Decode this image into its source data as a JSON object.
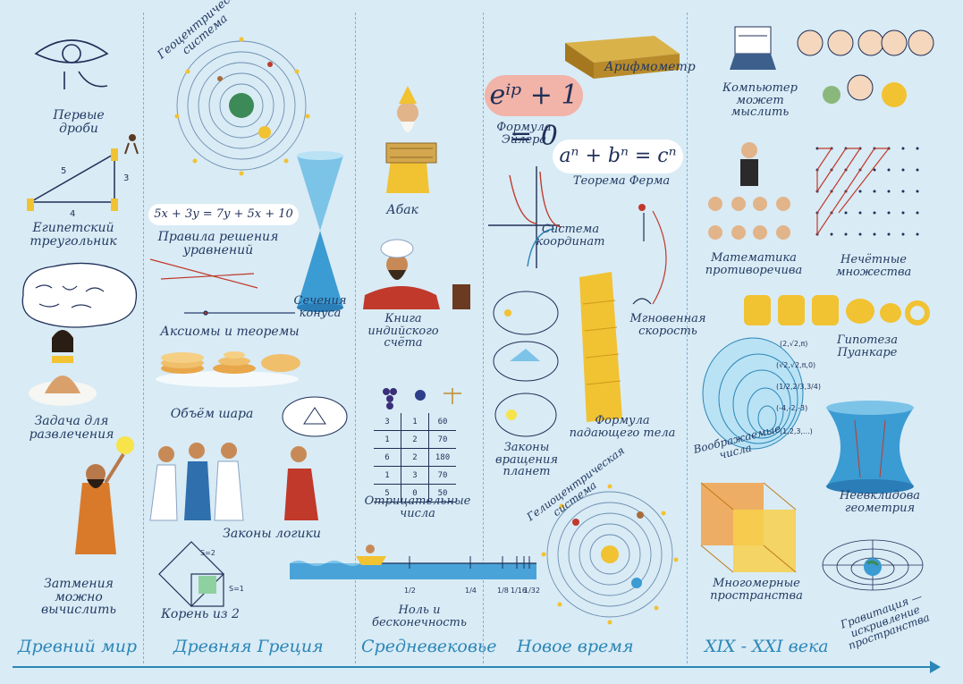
{
  "eras": [
    {
      "label": "Древний мир"
    },
    {
      "label": "Древняя Греция"
    },
    {
      "label": "Средневековье"
    },
    {
      "label": "Новое время"
    },
    {
      "label": "XIX - XXI века"
    }
  ],
  "ancient": {
    "fractions": "Первые дроби",
    "triangle": "Египетский треугольник",
    "triangle_sides": [
      "5",
      "3",
      "4"
    ],
    "puzzle": "Задача для развлечения",
    "eclipse": "Затмения можно вычислить"
  },
  "greece": {
    "geocentric": "Геоцентрическая система",
    "equation": "5x + 3y = 7y + 5x + 10",
    "rules": "Правила решения уравнений",
    "conic": "Сечения конуса",
    "axioms": "Аксиомы и теоремы",
    "sphere": "Объём шара",
    "logic": "Законы логики",
    "sqrt": "Корень из 2",
    "sqrt_labels": [
      "S=2",
      "S=1"
    ]
  },
  "medieval": {
    "abacus": "Абак",
    "book": "Книга индийского счёта",
    "negative": "Отрицательные числа",
    "negative_table": [
      [
        "3",
        "1",
        "60"
      ],
      [
        "1",
        "2",
        "70"
      ],
      [
        "6",
        "2",
        "180"
      ],
      [
        "1",
        "3",
        "70"
      ],
      [
        "5",
        "0",
        "50"
      ]
    ],
    "zero": "Ноль и бесконечность",
    "zero_ticks": [
      "1/2",
      "1/4",
      "1/8",
      "1/16",
      "1/32"
    ]
  },
  "modern": {
    "arithmometer": "Арифмометр",
    "euler_formula": "eⁱᵖ + 1 = 0",
    "euler": "Формула Эйлера",
    "fermat_formula": "aⁿ + bⁿ = cⁿ",
    "fermat": "Теорема Ферма",
    "coordinates": "Система координат",
    "instant_speed": "Мгновенная скорость",
    "falling": "Формула падающего тела",
    "planets": "Законы вращения планет",
    "heliocentric": "Гелиоцентрическая система"
  },
  "recent": {
    "computer": "Компьютер может мыслить",
    "contradictory": "Математика противоречива",
    "infinite_sets": "Нечётные множества",
    "poincare": "Гипотеза Пуанкаре",
    "complex": "Воображаемые числа",
    "complex_labels": [
      "(2,√2,π)",
      "(√2,√2,π,0)",
      "(1/2,2/3,3/4)",
      "(-4,-2,-3)",
      "(1,2,3,...)"
    ],
    "non_euclid": "Неевклидова геометрия",
    "multidim": "Многомерные пространства",
    "gravity": "Гравитация — искривление пространства"
  },
  "colors": {
    "background": "#d9ebf5",
    "accent": "#2b86b7",
    "ink": "#233b63",
    "gold": "#f1c232",
    "red": "#c0392b"
  }
}
